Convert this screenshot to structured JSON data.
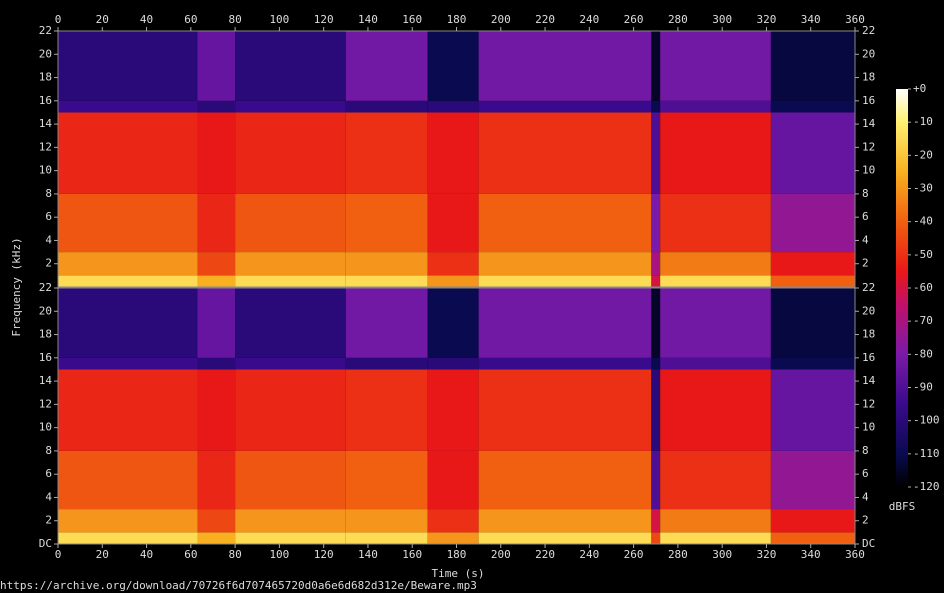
{
  "chart_data": {
    "type": "spectrogram",
    "xlabel": "Time (s)",
    "ylabel": "Frequency (kHz)",
    "colorbar_label": "dBFS",
    "footer": "https://archive.org/download/70726f6d707465720d0a6e6d682d312e/Beware.mp3",
    "xlim": [
      0,
      360
    ],
    "xticks": [
      0,
      20,
      40,
      60,
      80,
      100,
      120,
      140,
      160,
      180,
      200,
      220,
      240,
      260,
      280,
      300,
      320,
      340,
      360
    ],
    "time_edges": [
      0,
      63,
      80,
      130,
      167,
      190,
      268,
      272,
      322,
      360
    ],
    "freq_edges": [
      0,
      1,
      3,
      8,
      15,
      16,
      22
    ],
    "channels": [
      {
        "ylim": [
          0,
          22
        ],
        "yticks": [
          2,
          4,
          6,
          8,
          10,
          12,
          14,
          16,
          18,
          20,
          22
        ],
        "z": [
          [
            -15,
            -25,
            -15,
            -15,
            -30,
            -15,
            -60,
            -15,
            -40
          ],
          [
            -30,
            -45,
            -30,
            -30,
            -50,
            -30,
            -70,
            -35,
            -55
          ],
          [
            -42,
            -52,
            -42,
            -40,
            -55,
            -40,
            -80,
            -50,
            -75
          ],
          [
            -52,
            -55,
            -52,
            -50,
            -55,
            -50,
            -90,
            -55,
            -85
          ],
          [
            -95,
            -100,
            -95,
            -100,
            -100,
            -95,
            -110,
            -90,
            -110
          ],
          [
            -100,
            -85,
            -100,
            -82,
            -110,
            -82,
            -115,
            -82,
            -112
          ]
        ]
      },
      {
        "ylim": [
          0,
          22
        ],
        "yticks": [
          {
            "value": 0,
            "label": "DC"
          },
          2,
          4,
          6,
          8,
          10,
          12,
          14,
          16,
          18,
          20,
          22
        ],
        "z": [
          [
            -15,
            -25,
            -15,
            -15,
            -30,
            -15,
            -45,
            -15,
            -40
          ],
          [
            -30,
            -45,
            -30,
            -30,
            -50,
            -30,
            -60,
            -35,
            -55
          ],
          [
            -42,
            -52,
            -42,
            -40,
            -55,
            -40,
            -90,
            -50,
            -75
          ],
          [
            -52,
            -55,
            -52,
            -50,
            -55,
            -50,
            -100,
            -55,
            -85
          ],
          [
            -95,
            -100,
            -95,
            -100,
            -100,
            -95,
            -110,
            -90,
            -110
          ],
          [
            -100,
            -85,
            -100,
            -82,
            -110,
            -82,
            -115,
            -82,
            -112
          ]
        ]
      }
    ],
    "clim": [
      -120,
      0
    ],
    "cticks": [
      {
        "value": 0,
        "label": "+0"
      },
      -10,
      -20,
      -30,
      -40,
      -50,
      -60,
      -70,
      -80,
      -90,
      -100,
      -110,
      -120
    ],
    "colorscale": [
      [
        -120,
        "#000000"
      ],
      [
        -110,
        "#0a0a50"
      ],
      [
        -95,
        "#3a0a8c"
      ],
      [
        -80,
        "#7a1aa8"
      ],
      [
        -65,
        "#c0106a"
      ],
      [
        -55,
        "#e81818"
      ],
      [
        -40,
        "#f06010"
      ],
      [
        -25,
        "#f8b020"
      ],
      [
        -10,
        "#fff070"
      ],
      [
        0,
        "#ffffff"
      ]
    ]
  }
}
